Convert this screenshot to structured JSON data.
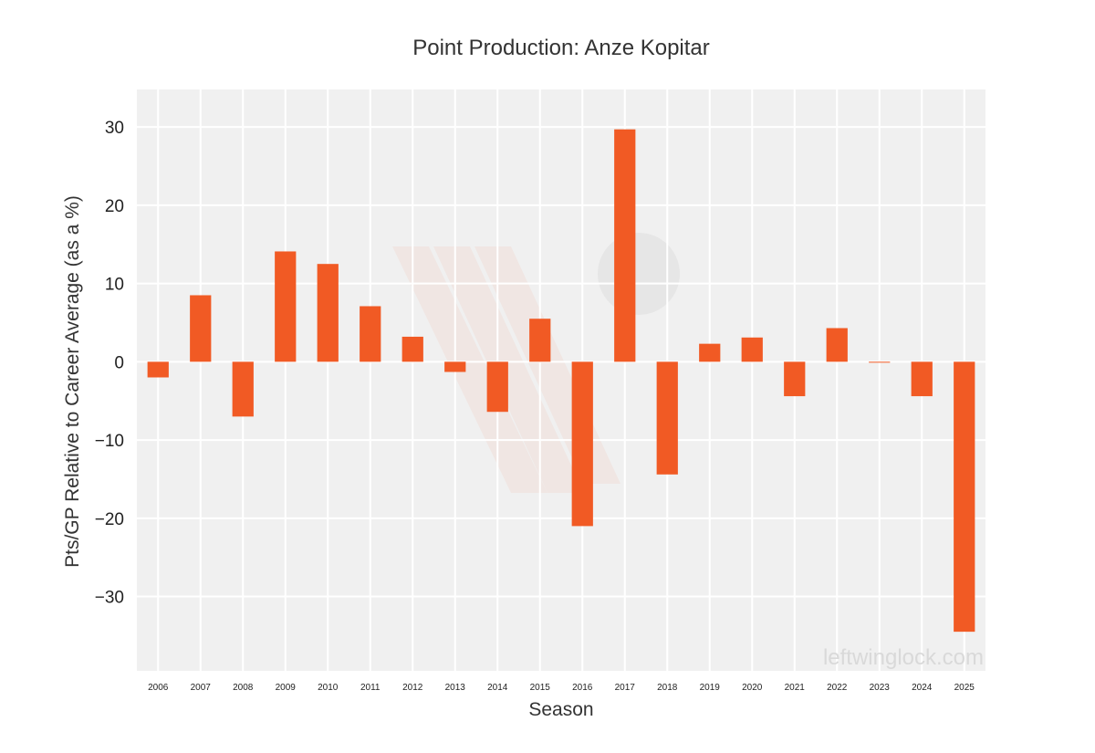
{
  "chart_data": {
    "type": "bar",
    "title": "Point Production: Anze Kopitar",
    "xlabel": "Season",
    "ylabel": "Pts/GP Relative to Career Average (as a %)",
    "categories": [
      "2006",
      "2007",
      "2008",
      "2009",
      "2010",
      "2011",
      "2012",
      "2013",
      "2014",
      "2015",
      "2016",
      "2017",
      "2018",
      "2019",
      "2020",
      "2021",
      "2022",
      "2023",
      "2024",
      "2025"
    ],
    "values": [
      -2.0,
      8.5,
      -7.0,
      14.1,
      12.5,
      7.1,
      3.2,
      -1.3,
      -6.4,
      5.5,
      -21.0,
      29.7,
      -14.4,
      2.3,
      3.1,
      -4.4,
      4.3,
      -0.1,
      -4.4,
      -34.5
    ],
    "ylim": [
      -39.5,
      34.8
    ],
    "yticks": [
      30,
      20,
      10,
      0,
      -10,
      -20,
      -30
    ],
    "ytick_labels": [
      "30",
      "20",
      "10",
      "0",
      "−10",
      "−20",
      "−30"
    ],
    "grid": true,
    "bar_color": "#f15a24",
    "background_color": "#f0f0f0",
    "grid_color": "#ffffff",
    "watermark": "leftwinglock.com"
  }
}
